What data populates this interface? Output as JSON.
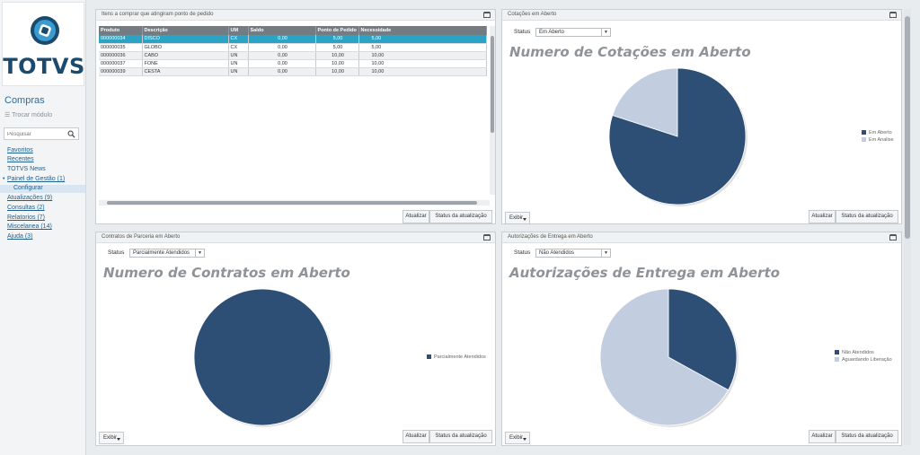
{
  "brand": {
    "name": "TOTVS"
  },
  "sidebar": {
    "module_title": "Compras",
    "switch_module": "Trocar módulo",
    "search_placeholder": "Pesquisar",
    "items": [
      {
        "label": "Favoritos"
      },
      {
        "label": "Recentes"
      },
      {
        "label": "TOTVS News"
      },
      {
        "label": "Painel de Gestão (1)"
      },
      {
        "label": "Configurar"
      },
      {
        "label": "Atualizações (9)"
      },
      {
        "label": "Consultas (2)"
      },
      {
        "label": "Relatorios (7)"
      },
      {
        "label": "Miscelanea (14)"
      },
      {
        "label": "Ajuda (3)"
      }
    ]
  },
  "buttons": {
    "update": "Atualizar",
    "update_status": "Status da atualização",
    "show": "Exibir"
  },
  "status_label": "Status",
  "panels": {
    "items": {
      "title": "Itens a comprar que atingiram ponto de pedido",
      "columns": [
        "Produto",
        "Descrição",
        "UM",
        "Saldo",
        "Ponto de Pedido",
        "Necessidade"
      ],
      "rows": [
        [
          "000000034",
          "DISCO",
          "CX",
          "0,00",
          "5,00",
          "5,00"
        ],
        [
          "000000035",
          "GLOBO",
          "CX",
          "0,00",
          "5,00",
          "5,00"
        ],
        [
          "000000036",
          "CABO",
          "UN",
          "0,00",
          "10,00",
          "10,00"
        ],
        [
          "000000037",
          "FONE",
          "UN",
          "0,00",
          "10,00",
          "10,00"
        ],
        [
          "000000039",
          "CESTA",
          "UN",
          "0,00",
          "10,00",
          "10,00"
        ]
      ]
    },
    "quotes": {
      "title": "Cotações em Aberto",
      "status_value": "Em Aberto",
      "chart_title": "Numero de Cotações em Aberto",
      "legend": [
        "Em Aberto",
        "Em Analise"
      ]
    },
    "contracts": {
      "title": "Contratos de Parceria em Aberto",
      "status_value": "Parcialmente Atendidos",
      "chart_title": "Numero de Contratos em Aberto",
      "legend": [
        "Parcialmente Atendidos"
      ]
    },
    "deliveries": {
      "title": "Autorizações de Entrega em Aberto",
      "status_value": "Não Atendidos",
      "chart_title": "Autorizações de Entrega em Aberto",
      "legend": [
        "Não Atendidos",
        "Aguardando Liberação"
      ]
    }
  },
  "colors": {
    "dark": "#2d4f75",
    "light": "#c3cde0",
    "selected_row": "#2aa3c4",
    "accent": "#1f5f8b"
  },
  "chart_data": [
    {
      "type": "pie",
      "title": "Numero de Cotações em Aberto",
      "categories": [
        "Em Aberto",
        "Em Analise"
      ],
      "values": [
        80,
        20
      ]
    },
    {
      "type": "pie",
      "title": "Numero de Contratos em Aberto",
      "categories": [
        "Parcialmente Atendidos"
      ],
      "values": [
        100
      ]
    },
    {
      "type": "pie",
      "title": "Autorizações de Entrega em Aberto",
      "categories": [
        "Não Atendidos",
        "Aguardando Liberação"
      ],
      "values": [
        33,
        67
      ]
    }
  ]
}
